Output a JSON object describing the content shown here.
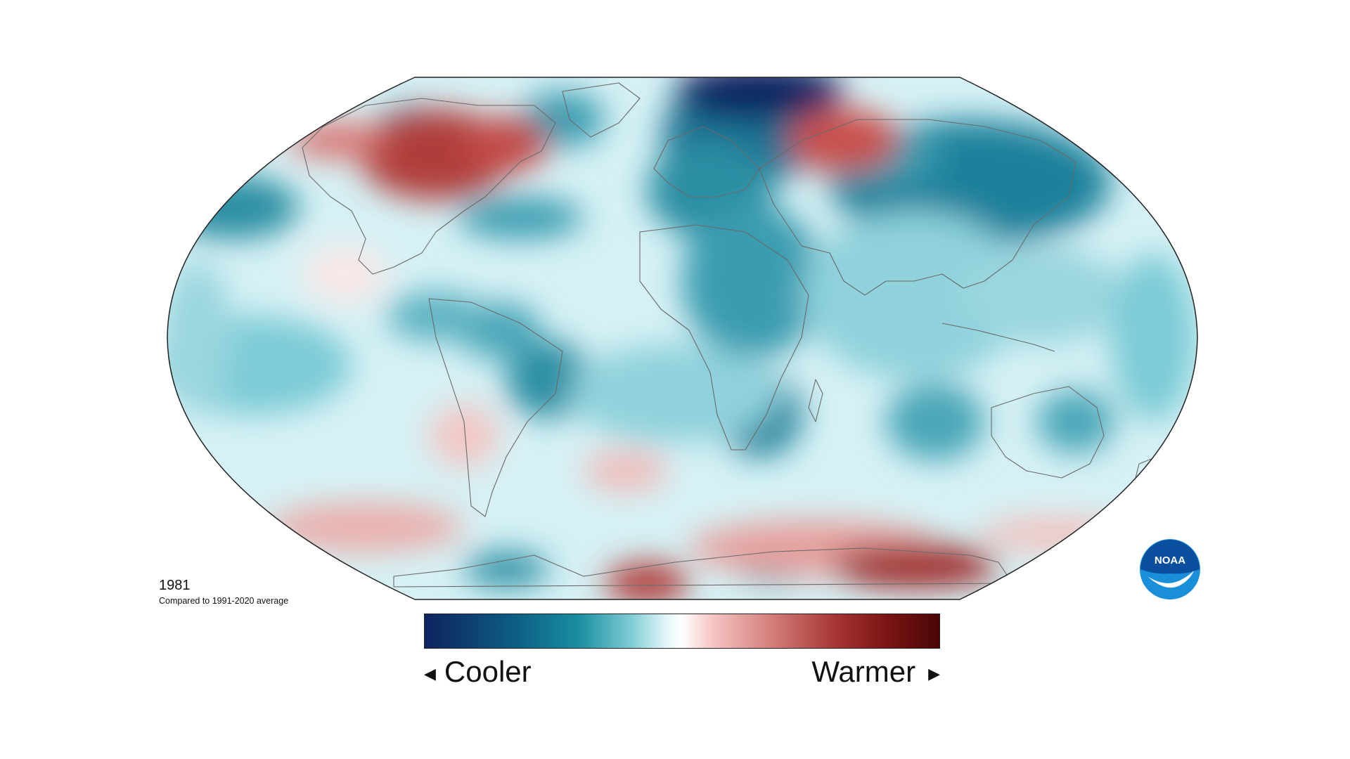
{
  "map": {
    "year": "1981",
    "subtitle": "Compared to 1991-2020 average"
  },
  "legend": {
    "cooler_label": "Cooler",
    "warmer_label": "Warmer",
    "gradient_colors": [
      "#0e2361",
      "#0d5f86",
      "#1a8ea0",
      "#7fcbd5",
      "#e4f6f9",
      "#ffffff",
      "#f4c4c2",
      "#d27b78",
      "#a63432",
      "#7a1414",
      "#4a0606"
    ]
  },
  "logo": {
    "text": "NOAA",
    "primary_color": "#0a4f9e",
    "secondary_color": "#1a8fd9"
  },
  "colors": {
    "ocean_base": "#d3f0f4",
    "cool_medium": "#2d97ab",
    "cool_deep": "#0e2361",
    "warm_medium": "#d9716d",
    "warm_deep": "#9c2424",
    "coastline": "#6a6a6a",
    "border": "#222222"
  }
}
